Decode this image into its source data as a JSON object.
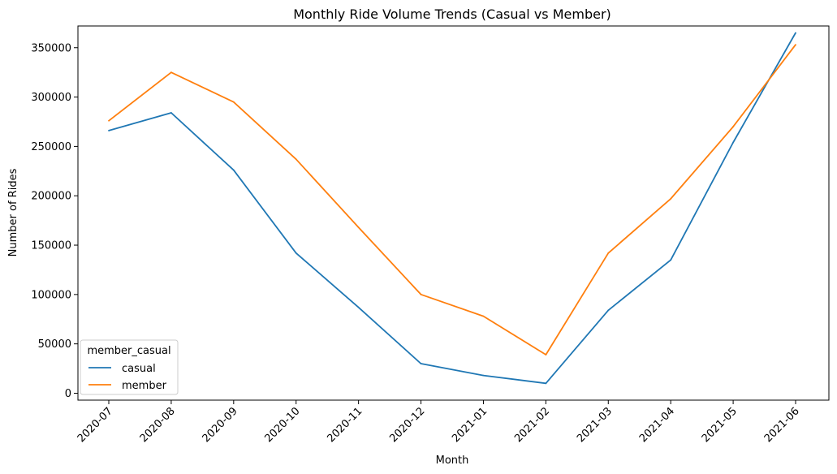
{
  "chart_data": {
    "type": "line",
    "title": "Monthly Ride Volume Trends (Casual vs Member)",
    "xlabel": "Month",
    "ylabel": "Number of Rides",
    "categories": [
      "2020-07",
      "2020-08",
      "2020-09",
      "2020-10",
      "2020-11",
      "2020-12",
      "2021-01",
      "2021-02",
      "2021-03",
      "2021-04",
      "2021-05",
      "2021-06"
    ],
    "yticks": [
      0,
      50000,
      100000,
      150000,
      200000,
      250000,
      300000,
      350000
    ],
    "ylim": [
      -7000,
      372000
    ],
    "grid": false,
    "legend": {
      "title": "member_casual",
      "placement": "lower-left"
    },
    "series": [
      {
        "name": "casual",
        "color": "#1f77b4",
        "values": [
          266000,
          284000,
          226000,
          142000,
          87000,
          30000,
          18000,
          10000,
          84000,
          135000,
          254000,
          365000
        ]
      },
      {
        "name": "member",
        "color": "#ff7f0e",
        "values": [
          276000,
          325000,
          295000,
          237000,
          168000,
          100000,
          78000,
          39000,
          142000,
          197000,
          270000,
          353000
        ]
      }
    ]
  }
}
